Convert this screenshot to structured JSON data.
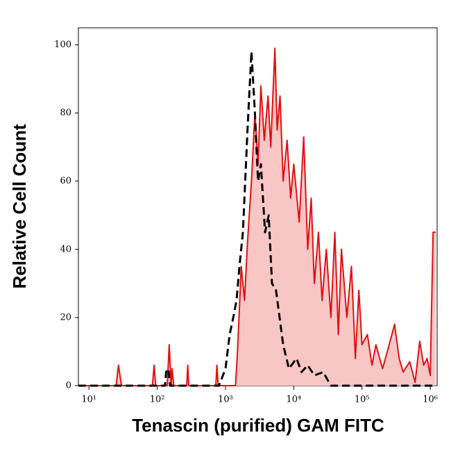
{
  "chart_data": {
    "type": "histogram-overlay",
    "x_label": "Tenascin (purified) GAM FITC",
    "y_label": "Relative Cell Count",
    "xscale": "log",
    "xlim": [
      7,
      1260000
    ],
    "ylim": [
      0,
      105
    ],
    "xticks": [
      {
        "value": 10,
        "label": "10¹"
      },
      {
        "value": 100,
        "label": "10²"
      },
      {
        "value": 1000,
        "label": "10³"
      },
      {
        "value": 10000,
        "label": "10⁴"
      },
      {
        "value": 100000,
        "label": "10⁵"
      },
      {
        "value": 1000000,
        "label": "10⁶"
      }
    ],
    "yticks": [
      0,
      20,
      40,
      60,
      80,
      100
    ],
    "series": [
      {
        "color": "#e01010",
        "fill": "#f9c6c6",
        "style": "solid",
        "x": [
          7,
          25,
          27,
          30,
          85,
          90,
          95,
          140,
          150,
          160,
          165,
          175,
          270,
          280,
          290,
          720,
          750,
          780,
          1400,
          1500,
          1700,
          1900,
          2100,
          2400,
          2700,
          3000,
          3300,
          3700,
          4200,
          4600,
          5300,
          5700,
          6300,
          7000,
          8000,
          9000,
          10000,
          12000,
          14000,
          16000,
          18000,
          20000,
          23000,
          26000,
          30000,
          35000,
          40000,
          45000,
          50000,
          60000,
          70000,
          80000,
          90000,
          100000,
          120000,
          140000,
          160000,
          200000,
          250000,
          300000,
          350000,
          400000,
          500000,
          600000,
          700000,
          800000,
          900000,
          1000000,
          1100000,
          1200000
        ],
        "values": [
          0,
          0,
          6,
          0,
          0,
          6,
          0,
          0,
          12,
          0,
          5,
          0,
          0,
          6,
          0,
          0,
          6,
          0,
          0,
          10,
          35,
          25,
          42,
          60,
          80,
          65,
          88,
          72,
          85,
          70,
          99,
          75,
          85,
          60,
          72,
          55,
          65,
          48,
          73,
          40,
          55,
          30,
          45,
          25,
          40,
          20,
          45,
          15,
          40,
          20,
          35,
          8,
          28,
          12,
          15,
          6,
          12,
          5,
          12,
          18,
          8,
          4,
          7,
          1,
          13,
          6,
          8,
          3,
          45,
          45
        ]
      },
      {
        "color": "#000000",
        "style": "dashed",
        "x": [
          7,
          130,
          135,
          145,
          155,
          800,
          1000,
          1150,
          1300,
          1450,
          1600,
          1800,
          2100,
          2400,
          2700,
          3000,
          3300,
          3800,
          4300,
          4800,
          5500,
          7000,
          8500,
          11000,
          13000,
          16000,
          20000,
          27000,
          35000,
          1200000
        ],
        "values": [
          0,
          0,
          4,
          5,
          0,
          0,
          5,
          15,
          20,
          25,
          35,
          45,
          75,
          98,
          80,
          60,
          65,
          45,
          50,
          30,
          28,
          12,
          5,
          8,
          4,
          6,
          3,
          4,
          0,
          0
        ]
      }
    ]
  }
}
